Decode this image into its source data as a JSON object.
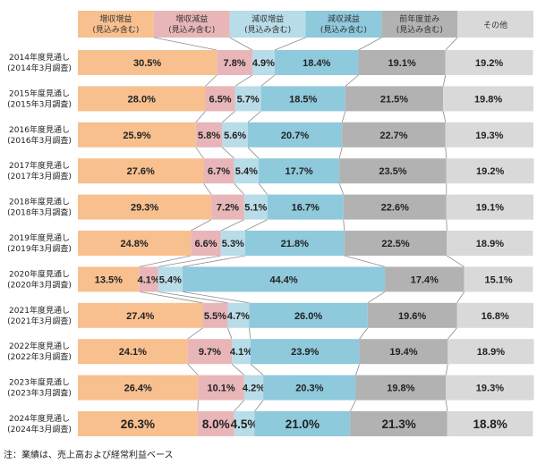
{
  "chart_data": {
    "type": "bar",
    "orientation": "horizontal",
    "stacked": "100%",
    "legend_position": "top",
    "series": [
      {
        "name": "増収増益\n(見込み含む)",
        "color": "#f8c08f"
      },
      {
        "name": "増収減益\n(見込み含む)",
        "color": "#e8b6b8"
      },
      {
        "name": "減収増益\n(見込み含む)",
        "color": "#b8dce8"
      },
      {
        "name": "減収減益\n(見込み含む)",
        "color": "#8ec9dc"
      },
      {
        "name": "前年度並み\n(見込み含む)",
        "color": "#b2b2b2"
      },
      {
        "name": "その他",
        "color": "#d9d9d9"
      }
    ],
    "categories": [
      {
        "label": "2014年度見通し",
        "sublabel": "(2014年3月調査)",
        "values": [
          30.5,
          7.8,
          4.9,
          18.4,
          19.1,
          19.2
        ]
      },
      {
        "label": "2015年度見通し",
        "sublabel": "(2015年3月調査)",
        "values": [
          28.0,
          6.5,
          5.7,
          18.5,
          21.5,
          19.8
        ]
      },
      {
        "label": "2016年度見通し",
        "sublabel": "(2016年3月調査)",
        "values": [
          25.9,
          5.8,
          5.6,
          20.7,
          22.7,
          19.3
        ]
      },
      {
        "label": "2017年度見通し",
        "sublabel": "(2017年3月調査)",
        "values": [
          27.6,
          6.7,
          5.4,
          17.7,
          23.5,
          19.2
        ]
      },
      {
        "label": "2018年度見通し",
        "sublabel": "(2018年3月調査)",
        "values": [
          29.3,
          7.2,
          5.1,
          16.7,
          22.6,
          19.1
        ]
      },
      {
        "label": "2019年度見通し",
        "sublabel": "(2019年3月調査)",
        "values": [
          24.8,
          6.6,
          5.3,
          21.8,
          22.5,
          18.9
        ]
      },
      {
        "label": "2020年度見通し",
        "sublabel": "(2020年3月調査)",
        "values": [
          13.5,
          4.1,
          5.4,
          44.4,
          17.4,
          15.1
        ]
      },
      {
        "label": "2021年度見通し",
        "sublabel": "(2021年3月調査)",
        "values": [
          27.4,
          5.5,
          4.7,
          26.0,
          19.6,
          16.8
        ]
      },
      {
        "label": "2022年度見通し",
        "sublabel": "(2022年3月調査)",
        "values": [
          24.1,
          9.7,
          4.1,
          23.9,
          19.4,
          18.9
        ]
      },
      {
        "label": "2023年度見通し",
        "sublabel": "(2023年3月調査)",
        "values": [
          26.4,
          10.1,
          4.2,
          20.3,
          19.8,
          19.3
        ]
      },
      {
        "label": "2024年度見通し",
        "sublabel": "(2024年3月調査)",
        "values": [
          26.3,
          8.0,
          4.5,
          21.0,
          21.3,
          18.8
        ]
      }
    ],
    "value_format": "percent_1dp",
    "highlight_last_row": true,
    "connector_lines": true,
    "xlim": [
      0,
      100
    ]
  },
  "note": "注：業績は、売上高および経常利益ベース"
}
